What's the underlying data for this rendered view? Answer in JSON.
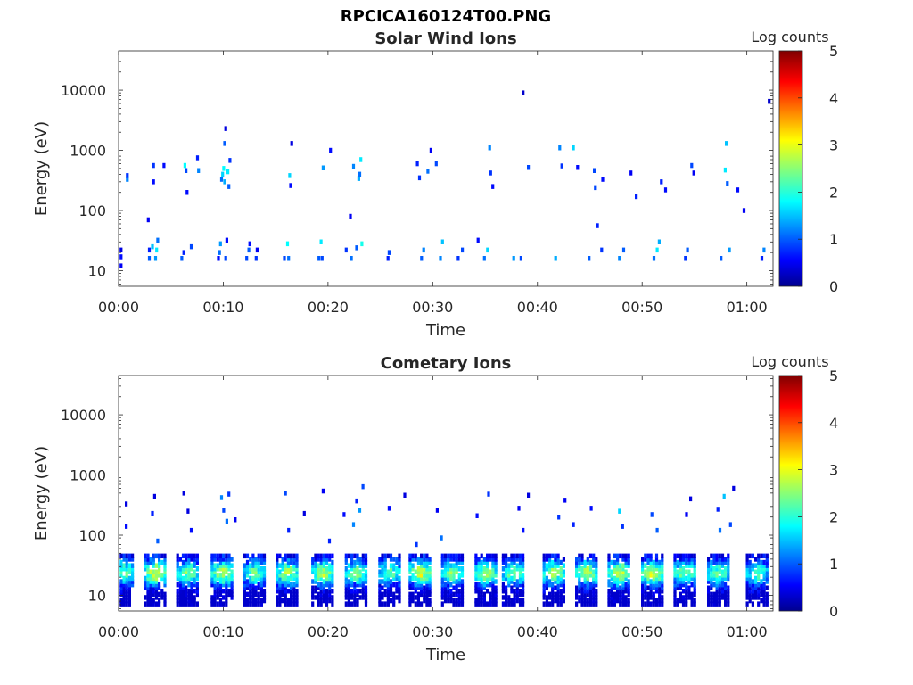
{
  "figure": {
    "title": "RPCICA160124T00.PNG"
  },
  "colormap": {
    "name": "jet",
    "stops": [
      "#00008f",
      "#0000ff",
      "#00ffff",
      "#ffff00",
      "#ff0000",
      "#800000"
    ]
  },
  "chart_data": [
    {
      "type": "heatmap",
      "title": "Solar Wind Ions",
      "xlabel": "Time",
      "ylabel": "Energy (eV)",
      "x_unit": "minutes",
      "xlim": [
        0,
        62.5
      ],
      "ylim": [
        5.5,
        45000
      ],
      "yscale": "log",
      "x_ticks": [
        0,
        10,
        20,
        30,
        40,
        50,
        60
      ],
      "x_tick_labels": [
        "00:00",
        "00:10",
        "00:20",
        "00:30",
        "00:40",
        "00:50",
        "01:00"
      ],
      "y_ticks": [
        10,
        100,
        1000,
        10000
      ],
      "y_tick_labels": [
        "10",
        "100",
        "1000",
        "10000"
      ],
      "colorbar": {
        "label": "Log counts",
        "range": [
          0,
          5
        ],
        "ticks": [
          "0",
          "1",
          "2",
          "3",
          "4",
          "5"
        ]
      },
      "cells": [
        [
          0.1,
          12,
          0.5
        ],
        [
          0.1,
          17,
          0.6
        ],
        [
          0.1,
          22,
          0.4
        ],
        [
          0.7,
          330,
          1.2
        ],
        [
          0.7,
          380,
          0.8
        ],
        [
          2.7,
          70,
          0.5
        ],
        [
          2.8,
          16,
          1.0
        ],
        [
          2.8,
          22,
          0.7
        ],
        [
          3.1,
          25,
          1.5
        ],
        [
          3.2,
          300,
          0.6
        ],
        [
          3.2,
          560,
          0.8
        ],
        [
          3.4,
          16,
          1.3
        ],
        [
          3.5,
          22,
          1.7
        ],
        [
          3.6,
          32,
          1.1
        ],
        [
          4.2,
          560,
          0.6
        ],
        [
          5.9,
          16,
          1.0
        ],
        [
          6.1,
          20,
          0.7
        ],
        [
          6.2,
          560,
          1.8
        ],
        [
          6.3,
          460,
          0.9
        ],
        [
          6.4,
          200,
          0.6
        ],
        [
          6.8,
          25,
          0.9
        ],
        [
          7.4,
          750,
          0.7
        ],
        [
          7.5,
          460,
          1.2
        ],
        [
          9.4,
          16,
          0.6
        ],
        [
          9.5,
          20,
          1.1
        ],
        [
          9.6,
          28,
          1.3
        ],
        [
          9.7,
          330,
          1.1
        ],
        [
          9.8,
          400,
          1.6
        ],
        [
          9.9,
          500,
          1.8
        ],
        [
          10.0,
          300,
          1.4
        ],
        [
          10.0,
          1300,
          1.0
        ],
        [
          10.1,
          2300,
          0.4
        ],
        [
          10.1,
          16,
          0.9
        ],
        [
          10.2,
          32,
          0.6
        ],
        [
          10.3,
          440,
          1.7
        ],
        [
          10.4,
          250,
          1.0
        ],
        [
          10.5,
          680,
          0.8
        ],
        [
          12.1,
          16,
          0.9
        ],
        [
          12.3,
          22,
          1.0
        ],
        [
          12.4,
          28,
          0.6
        ],
        [
          13.0,
          16,
          0.8
        ],
        [
          13.1,
          22,
          0.5
        ],
        [
          15.7,
          16,
          0.9
        ],
        [
          16.0,
          28,
          1.8
        ],
        [
          16.1,
          16,
          1.1
        ],
        [
          16.2,
          380,
          1.6
        ],
        [
          16.3,
          260,
          0.6
        ],
        [
          16.4,
          1300,
          0.4
        ],
        [
          19.0,
          16,
          1.0
        ],
        [
          19.2,
          30,
          1.7
        ],
        [
          19.3,
          16,
          0.9
        ],
        [
          19.4,
          510,
          1.3
        ],
        [
          20.1,
          1000,
          0.6
        ],
        [
          21.6,
          22,
          0.8
        ],
        [
          22.1,
          16,
          1.1
        ],
        [
          22.3,
          540,
          1.2
        ],
        [
          22.6,
          24,
          1.0
        ],
        [
          22.8,
          340,
          1.4
        ],
        [
          22.9,
          400,
          1.1
        ],
        [
          23.0,
          700,
          1.7
        ],
        [
          23.1,
          28,
          1.9
        ],
        [
          22.0,
          80,
          0.5
        ],
        [
          25.6,
          16,
          0.7
        ],
        [
          25.7,
          20,
          0.9
        ],
        [
          28.4,
          600,
          0.7
        ],
        [
          28.6,
          350,
          0.8
        ],
        [
          28.8,
          16,
          1.0
        ],
        [
          29.0,
          22,
          1.2
        ],
        [
          29.4,
          450,
          1.1
        ],
        [
          29.7,
          1000,
          0.5
        ],
        [
          30.2,
          600,
          0.9
        ],
        [
          30.6,
          16,
          1.2
        ],
        [
          30.8,
          30,
          1.5
        ],
        [
          32.3,
          16,
          0.8
        ],
        [
          32.7,
          22,
          0.9
        ],
        [
          34.2,
          32,
          0.6
        ],
        [
          34.8,
          16,
          1.1
        ],
        [
          35.1,
          22,
          1.6
        ],
        [
          35.3,
          1100,
          1.2
        ],
        [
          35.4,
          420,
          0.8
        ],
        [
          35.6,
          250,
          0.6
        ],
        [
          37.6,
          16,
          1.3
        ],
        [
          38.3,
          16,
          0.9
        ],
        [
          38.5,
          9000,
          0.3
        ],
        [
          39.0,
          520,
          0.9
        ],
        [
          41.6,
          16,
          1.4
        ],
        [
          42.0,
          1100,
          1.2
        ],
        [
          42.2,
          550,
          0.8
        ],
        [
          43.3,
          1100,
          1.6
        ],
        [
          43.7,
          520,
          0.6
        ],
        [
          44.8,
          16,
          1.0
        ],
        [
          45.3,
          460,
          0.9
        ],
        [
          45.4,
          240,
          0.9
        ],
        [
          45.6,
          56,
          0.7
        ],
        [
          46.0,
          22,
          0.8
        ],
        [
          46.1,
          330,
          0.6
        ],
        [
          47.7,
          16,
          1.2
        ],
        [
          48.1,
          22,
          1.0
        ],
        [
          48.8,
          420,
          0.5
        ],
        [
          49.3,
          170,
          0.7
        ],
        [
          51.0,
          16,
          1.1
        ],
        [
          51.3,
          22,
          1.7
        ],
        [
          51.5,
          30,
          1.4
        ],
        [
          51.7,
          300,
          0.7
        ],
        [
          52.1,
          220,
          0.6
        ],
        [
          54.0,
          16,
          0.8
        ],
        [
          54.2,
          22,
          1.0
        ],
        [
          54.6,
          560,
          0.9
        ],
        [
          54.8,
          420,
          0.5
        ],
        [
          57.4,
          16,
          1.0
        ],
        [
          57.8,
          470,
          1.7
        ],
        [
          57.9,
          1300,
          1.5
        ],
        [
          58.0,
          280,
          1.0
        ],
        [
          58.2,
          22,
          1.3
        ],
        [
          59.0,
          220,
          0.6
        ],
        [
          59.6,
          100,
          0.5
        ],
        [
          61.3,
          16,
          0.7
        ],
        [
          61.5,
          22,
          1.2
        ],
        [
          62.0,
          6500,
          0.3
        ]
      ]
    },
    {
      "type": "heatmap",
      "title": "Cometary Ions",
      "xlabel": "Time",
      "ylabel": "Energy (eV)",
      "x_unit": "minutes",
      "xlim": [
        0,
        62.5
      ],
      "ylim": [
        5.5,
        45000
      ],
      "yscale": "log",
      "x_ticks": [
        0,
        10,
        20,
        30,
        40,
        50,
        60
      ],
      "x_tick_labels": [
        "00:00",
        "00:10",
        "00:20",
        "00:30",
        "00:40",
        "00:50",
        "01:00"
      ],
      "y_ticks": [
        10,
        100,
        1000,
        10000
      ],
      "y_tick_labels": [
        "10",
        "100",
        "1000",
        "10000"
      ],
      "colorbar": {
        "label": "Log counts",
        "range": [
          0,
          5
        ],
        "ticks": [
          "0",
          "1",
          "2",
          "3",
          "4",
          "5"
        ]
      },
      "bursts": [
        [
          0.3,
          2.4
        ],
        [
          3.4,
          3.0
        ],
        [
          6.5,
          2.5
        ],
        [
          9.8,
          2.9
        ],
        [
          12.9,
          2.4
        ],
        [
          16.0,
          2.7
        ],
        [
          19.4,
          2.8
        ],
        [
          22.6,
          2.5
        ],
        [
          25.8,
          2.3
        ],
        [
          28.7,
          3.0
        ],
        [
          31.8,
          2.6
        ],
        [
          35.0,
          2.8
        ],
        [
          37.6,
          2.5
        ],
        [
          41.5,
          2.8
        ],
        [
          44.6,
          2.7
        ],
        [
          47.7,
          3.0
        ],
        [
          50.9,
          3.0
        ],
        [
          54.0,
          2.6
        ],
        [
          57.2,
          2.4
        ],
        [
          60.9,
          2.2
        ]
      ],
      "cells": [
        [
          0.6,
          330,
          0.4
        ],
        [
          0.6,
          140,
          0.6
        ],
        [
          3.1,
          230,
          0.7
        ],
        [
          3.3,
          440,
          0.4
        ],
        [
          3.6,
          80,
          1.0
        ],
        [
          6.1,
          500,
          0.4
        ],
        [
          6.5,
          250,
          0.4
        ],
        [
          6.8,
          120,
          0.6
        ],
        [
          9.7,
          420,
          1.2
        ],
        [
          9.9,
          260,
          0.9
        ],
        [
          10.2,
          170,
          1.1
        ],
        [
          10.4,
          480,
          0.8
        ],
        [
          11.0,
          180,
          0.5
        ],
        [
          15.8,
          500,
          0.9
        ],
        [
          16.1,
          120,
          0.7
        ],
        [
          17.6,
          230,
          0.4
        ],
        [
          19.4,
          540,
          0.5
        ],
        [
          20.0,
          80,
          0.7
        ],
        [
          21.4,
          220,
          0.6
        ],
        [
          22.3,
          150,
          1.2
        ],
        [
          22.6,
          370,
          0.7
        ],
        [
          22.9,
          260,
          1.3
        ],
        [
          23.2,
          640,
          0.9
        ],
        [
          25.7,
          280,
          0.6
        ],
        [
          27.2,
          460,
          0.4
        ],
        [
          28.3,
          70,
          0.8
        ],
        [
          30.3,
          260,
          0.5
        ],
        [
          30.7,
          90,
          1.1
        ],
        [
          34.1,
          210,
          0.6
        ],
        [
          35.2,
          480,
          0.8
        ],
        [
          38.1,
          280,
          0.5
        ],
        [
          38.5,
          120,
          0.6
        ],
        [
          39.0,
          460,
          0.4
        ],
        [
          41.9,
          200,
          0.8
        ],
        [
          42.5,
          380,
          0.5
        ],
        [
          43.3,
          150,
          0.7
        ],
        [
          43.9,
          40,
          1.0
        ],
        [
          45.0,
          280,
          0.6
        ],
        [
          47.7,
          250,
          1.6
        ],
        [
          48.0,
          140,
          0.8
        ],
        [
          50.8,
          220,
          0.9
        ],
        [
          51.3,
          120,
          1.0
        ],
        [
          54.1,
          220,
          0.5
        ],
        [
          54.5,
          400,
          0.4
        ],
        [
          57.1,
          270,
          0.7
        ],
        [
          57.3,
          120,
          1.1
        ],
        [
          57.7,
          440,
          1.5
        ],
        [
          58.3,
          150,
          0.9
        ],
        [
          58.6,
          600,
          0.4
        ]
      ]
    }
  ]
}
